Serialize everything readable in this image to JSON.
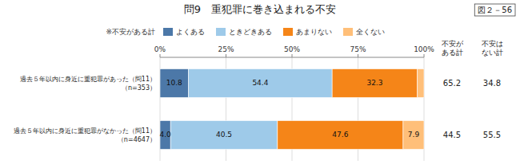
{
  "chart_data": {
    "type": "bar",
    "orientation": "horizontal",
    "stacked": true,
    "title": "問9　重犯罪に巻き込まれる不安",
    "figure_label": "図２－56",
    "legend_note": "※不安がある計",
    "categories": [
      "過去５年以内に身近に重犯罪があった（問11）\n（n=353）",
      "過去５年以内に身近に重犯罪がなかった（問11）\n（n=4647）"
    ],
    "series": [
      {
        "name": "よくある",
        "values": [
          10.8,
          4.0
        ],
        "value_labels": [
          "10.8",
          "4.0"
        ]
      },
      {
        "name": "ときどきある",
        "values": [
          54.4,
          40.5
        ],
        "value_labels": [
          "54.4",
          "40.5"
        ]
      },
      {
        "name": "あまりない",
        "values": [
          32.3,
          47.6
        ],
        "value_labels": [
          "32.3",
          "47.6"
        ]
      },
      {
        "name": "全くない",
        "values": [
          2.5,
          7.9
        ],
        "value_labels": [
          null,
          "7.9"
        ]
      }
    ],
    "summary_columns": [
      {
        "name": "不安が\nある計",
        "values": [
          65.2,
          44.5
        ]
      },
      {
        "name": "不安は\nない計",
        "values": [
          34.8,
          55.5
        ]
      }
    ],
    "xlim": [
      0,
      100
    ],
    "xticks": [
      {
        "value": 0,
        "label": "0%"
      },
      {
        "value": 25,
        "label": "25%"
      },
      {
        "value": 50,
        "label": "50%"
      },
      {
        "value": 75,
        "label": "75%"
      },
      {
        "value": 100,
        "label": "100%"
      }
    ],
    "grid": true,
    "legend": "top",
    "data_labels": true
  }
}
